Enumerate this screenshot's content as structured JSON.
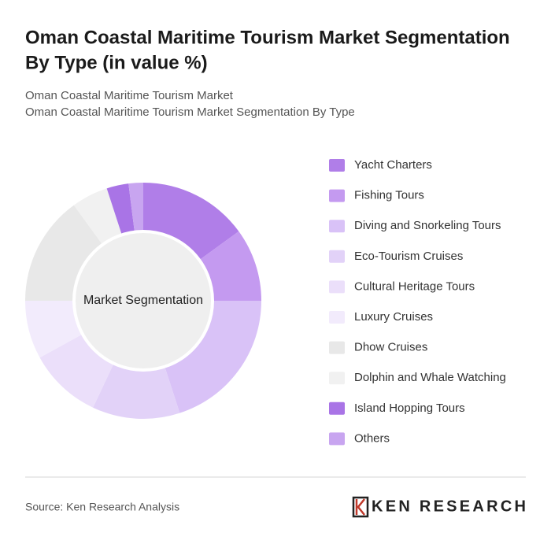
{
  "chart_data": {
    "type": "donut",
    "title": [
      "Oman Coastal Maritime Tourism Market Segmentation",
      "By Type (in value %)"
    ],
    "subtitle": [
      "Oman Coastal Maritime Tourism Market",
      "Oman Coastal Maritime Tourism Market Segmentation By Type"
    ],
    "center_label": "Market Segmentation",
    "categories": [
      "Yacht Charters",
      "Fishing Tours",
      "Diving and Snorkeling Tours",
      "Eco-Tourism Cruises",
      "Cultural Heritage Tours",
      "Luxury Cruises",
      "Dhow Cruises",
      "Dolphin and Whale Watching",
      "Island Hopping Tours",
      "Others"
    ],
    "values": [
      15,
      10,
      20,
      12,
      10,
      8,
      15,
      5,
      3,
      2
    ],
    "colors": [
      "#b07ee8",
      "#c49af0",
      "#d9c2f7",
      "#e2d2f8",
      "#ebdffa",
      "#f2ebfc",
      "#e8e8e8",
      "#f1f1f1",
      "#a974e6",
      "#c8a5f0"
    ],
    "source": "Source: Ken Research Analysis",
    "logo": "KEN RESEARCH"
  }
}
